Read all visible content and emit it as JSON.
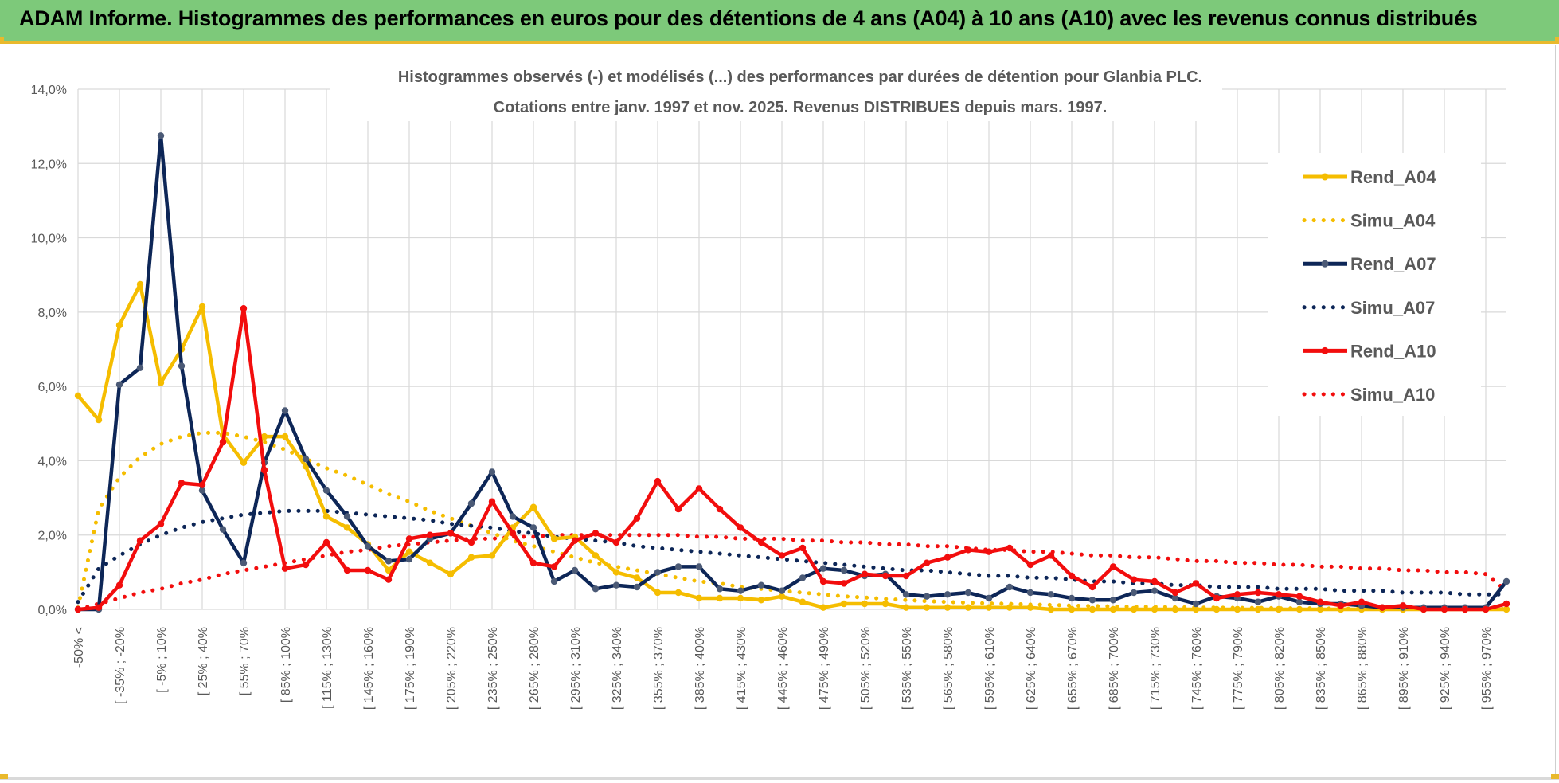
{
  "banner": {
    "title": "ADAM Informe. Histogrammes des performances en euros pour des détentions de 4 ans (A04) à 10 ans (A10) avec les revenus connus distribués"
  },
  "colors": {
    "banner_bg": "#7dc97a",
    "accent": "#e9b92c",
    "A04": "#f5bd00",
    "A07": "#0d2657",
    "A10": "#f20d0d",
    "grid": "#d9d9d9",
    "text": "#595959"
  },
  "chart_data": {
    "type": "line",
    "title": "Histogrammes observés (-) et modélisés (...) des performances par durées de détention pour Glanbia PLC.",
    "subtitle": "Cotations entre janv. 1997 et nov. 2025. Revenus DISTRIBUES depuis mars. 1997.",
    "xlabel": "",
    "ylabel": "",
    "ylim": [
      0,
      14
    ],
    "y_ticks": [
      "0,0%",
      "2,0%",
      "4,0%",
      "6,0%",
      "8,0%",
      "10,0%",
      "12,0%",
      "14,0%"
    ],
    "x_tick_labels": [
      "-50% <",
      "[ -35% ; -20%",
      "[ -5% ; 10%",
      "[ 25% ; 40%",
      "[ 55% ; 70%",
      "[ 85% ; 100%",
      "[ 115% ; 130%",
      "[ 145% ; 160%",
      "[ 175% ; 190%",
      "[ 205% ; 220%",
      "[ 235% ; 250%",
      "[ 265% ; 280%",
      "[ 295% ; 310%",
      "[ 325% ; 340%",
      "[ 355% ; 370%",
      "[ 385% ; 400%",
      "[ 415% ; 430%",
      "[ 445% ; 460%",
      "[ 475% ; 490%",
      "[ 505% ; 520%",
      "[ 535% ; 550%",
      "[ 565% ; 580%",
      "[ 595% ; 610%",
      "[ 625% ; 640%",
      "[ 655% ; 670%",
      "[ 685% ; 700%",
      "[ 715% ; 730%",
      "[ 745% ; 760%",
      "[ 775% ; 790%",
      "[ 805% ; 820%",
      "[ 835% ; 850%",
      "[ 865% ; 880%",
      "[ 895% ; 910%",
      "[ 925% ; 940%",
      "[ 955% ; 970%"
    ],
    "n_points": 70,
    "legend_position": "right",
    "series": [
      {
        "name": "Rend_A04",
        "style": "solid",
        "color": "#f5bd00",
        "values": [
          5.75,
          5.1,
          7.65,
          8.75,
          6.1,
          7.0,
          8.15,
          4.7,
          3.95,
          4.65,
          4.65,
          3.85,
          2.5,
          2.2,
          1.75,
          1.05,
          1.55,
          1.25,
          0.95,
          1.4,
          1.45,
          2.2,
          2.75,
          1.9,
          1.95,
          1.45,
          1.0,
          0.85,
          0.45,
          0.45,
          0.3,
          0.3,
          0.3,
          0.25,
          0.35,
          0.2,
          0.05,
          0.15,
          0.15,
          0.15,
          0.05,
          0.05,
          0.05,
          0.05,
          0.05,
          0.05,
          0.05,
          0.0,
          0.0,
          0.0,
          0.0,
          0.0,
          0.0,
          0.0,
          0.0,
          0.0,
          0.0,
          0.0,
          0.0,
          0.0,
          0.0,
          0.0,
          0.0,
          0.0,
          0.0,
          0.0,
          0.0,
          0.0,
          0.0,
          0.0
        ]
      },
      {
        "name": "Simu_A04",
        "style": "dotted",
        "color": "#f5bd00",
        "values": [
          0.05,
          2.7,
          3.55,
          4.1,
          4.45,
          4.65,
          4.75,
          4.75,
          4.65,
          4.5,
          4.3,
          4.05,
          3.8,
          3.6,
          3.35,
          3.1,
          2.9,
          2.65,
          2.45,
          2.25,
          2.05,
          1.85,
          1.7,
          1.55,
          1.4,
          1.25,
          1.15,
          1.05,
          0.95,
          0.85,
          0.75,
          0.7,
          0.6,
          0.55,
          0.5,
          0.45,
          0.4,
          0.35,
          0.32,
          0.28,
          0.25,
          0.22,
          0.2,
          0.18,
          0.16,
          0.15,
          0.13,
          0.12,
          0.1,
          0.09,
          0.08,
          0.07,
          0.07,
          0.06,
          0.05,
          0.05,
          0.04,
          0.04,
          0.03,
          0.03,
          0.03,
          0.02,
          0.02,
          0.02,
          0.02,
          0.02,
          0.01,
          0.01,
          0.01,
          0.01
        ]
      },
      {
        "name": "Rend_A07",
        "style": "solid",
        "color": "#0d2657",
        "values": [
          0.0,
          0.0,
          6.05,
          6.5,
          12.75,
          6.55,
          3.2,
          2.15,
          1.25,
          3.95,
          5.35,
          4.05,
          3.2,
          2.5,
          1.7,
          1.3,
          1.35,
          1.9,
          2.05,
          2.85,
          3.7,
          2.5,
          2.2,
          0.75,
          1.05,
          0.55,
          0.65,
          0.6,
          1.0,
          1.15,
          1.15,
          0.55,
          0.5,
          0.65,
          0.5,
          0.85,
          1.1,
          1.05,
          0.9,
          0.95,
          0.4,
          0.35,
          0.4,
          0.45,
          0.3,
          0.6,
          0.45,
          0.4,
          0.3,
          0.25,
          0.25,
          0.45,
          0.5,
          0.3,
          0.15,
          0.35,
          0.3,
          0.2,
          0.35,
          0.2,
          0.15,
          0.15,
          0.1,
          0.05,
          0.05,
          0.05,
          0.05,
          0.05,
          0.05,
          0.75
        ]
      },
      {
        "name": "Simu_A07",
        "style": "dotted",
        "color": "#0d2657",
        "values": [
          0.2,
          1.1,
          1.45,
          1.75,
          2.0,
          2.2,
          2.35,
          2.45,
          2.55,
          2.6,
          2.65,
          2.65,
          2.65,
          2.6,
          2.55,
          2.5,
          2.45,
          2.4,
          2.3,
          2.25,
          2.2,
          2.1,
          2.05,
          1.95,
          1.9,
          1.85,
          1.8,
          1.7,
          1.65,
          1.6,
          1.55,
          1.5,
          1.45,
          1.4,
          1.35,
          1.3,
          1.25,
          1.2,
          1.15,
          1.1,
          1.05,
          1.05,
          1.0,
          0.95,
          0.9,
          0.9,
          0.85,
          0.85,
          0.8,
          0.75,
          0.75,
          0.7,
          0.7,
          0.65,
          0.65,
          0.6,
          0.6,
          0.6,
          0.55,
          0.55,
          0.55,
          0.5,
          0.5,
          0.5,
          0.45,
          0.45,
          0.45,
          0.4,
          0.4,
          0.4
        ]
      },
      {
        "name": "Rend_A10",
        "style": "solid",
        "color": "#f20d0d",
        "values": [
          0.0,
          0.05,
          0.65,
          1.85,
          2.3,
          3.4,
          3.35,
          4.5,
          8.1,
          3.75,
          1.1,
          1.2,
          1.8,
          1.05,
          1.05,
          0.8,
          1.9,
          2.0,
          2.05,
          1.8,
          2.9,
          2.05,
          1.25,
          1.15,
          1.85,
          2.05,
          1.8,
          2.45,
          3.45,
          2.7,
          3.25,
          2.7,
          2.2,
          1.8,
          1.45,
          1.65,
          0.75,
          0.7,
          0.95,
          0.9,
          0.9,
          1.25,
          1.4,
          1.6,
          1.55,
          1.65,
          1.2,
          1.45,
          0.9,
          0.6,
          1.15,
          0.8,
          0.75,
          0.45,
          0.7,
          0.3,
          0.4,
          0.45,
          0.4,
          0.35,
          0.2,
          0.1,
          0.2,
          0.05,
          0.1,
          0.0,
          0.0,
          0.0,
          0.0,
          0.15
        ]
      },
      {
        "name": "Simu_A10",
        "style": "dotted",
        "color": "#f20d0d",
        "values": [
          0.0,
          0.15,
          0.3,
          0.45,
          0.55,
          0.7,
          0.8,
          0.95,
          1.05,
          1.15,
          1.25,
          1.35,
          1.45,
          1.55,
          1.6,
          1.7,
          1.75,
          1.8,
          1.85,
          1.9,
          1.9,
          1.95,
          1.95,
          2.0,
          2.0,
          2.0,
          2.0,
          2.0,
          2.0,
          2.0,
          1.95,
          1.95,
          1.9,
          1.9,
          1.9,
          1.85,
          1.85,
          1.8,
          1.8,
          1.75,
          1.75,
          1.7,
          1.7,
          1.65,
          1.6,
          1.6,
          1.55,
          1.55,
          1.5,
          1.45,
          1.45,
          1.4,
          1.4,
          1.35,
          1.3,
          1.3,
          1.25,
          1.25,
          1.2,
          1.2,
          1.15,
          1.15,
          1.1,
          1.1,
          1.05,
          1.05,
          1.0,
          1.0,
          0.95,
          0.5
        ]
      }
    ]
  }
}
